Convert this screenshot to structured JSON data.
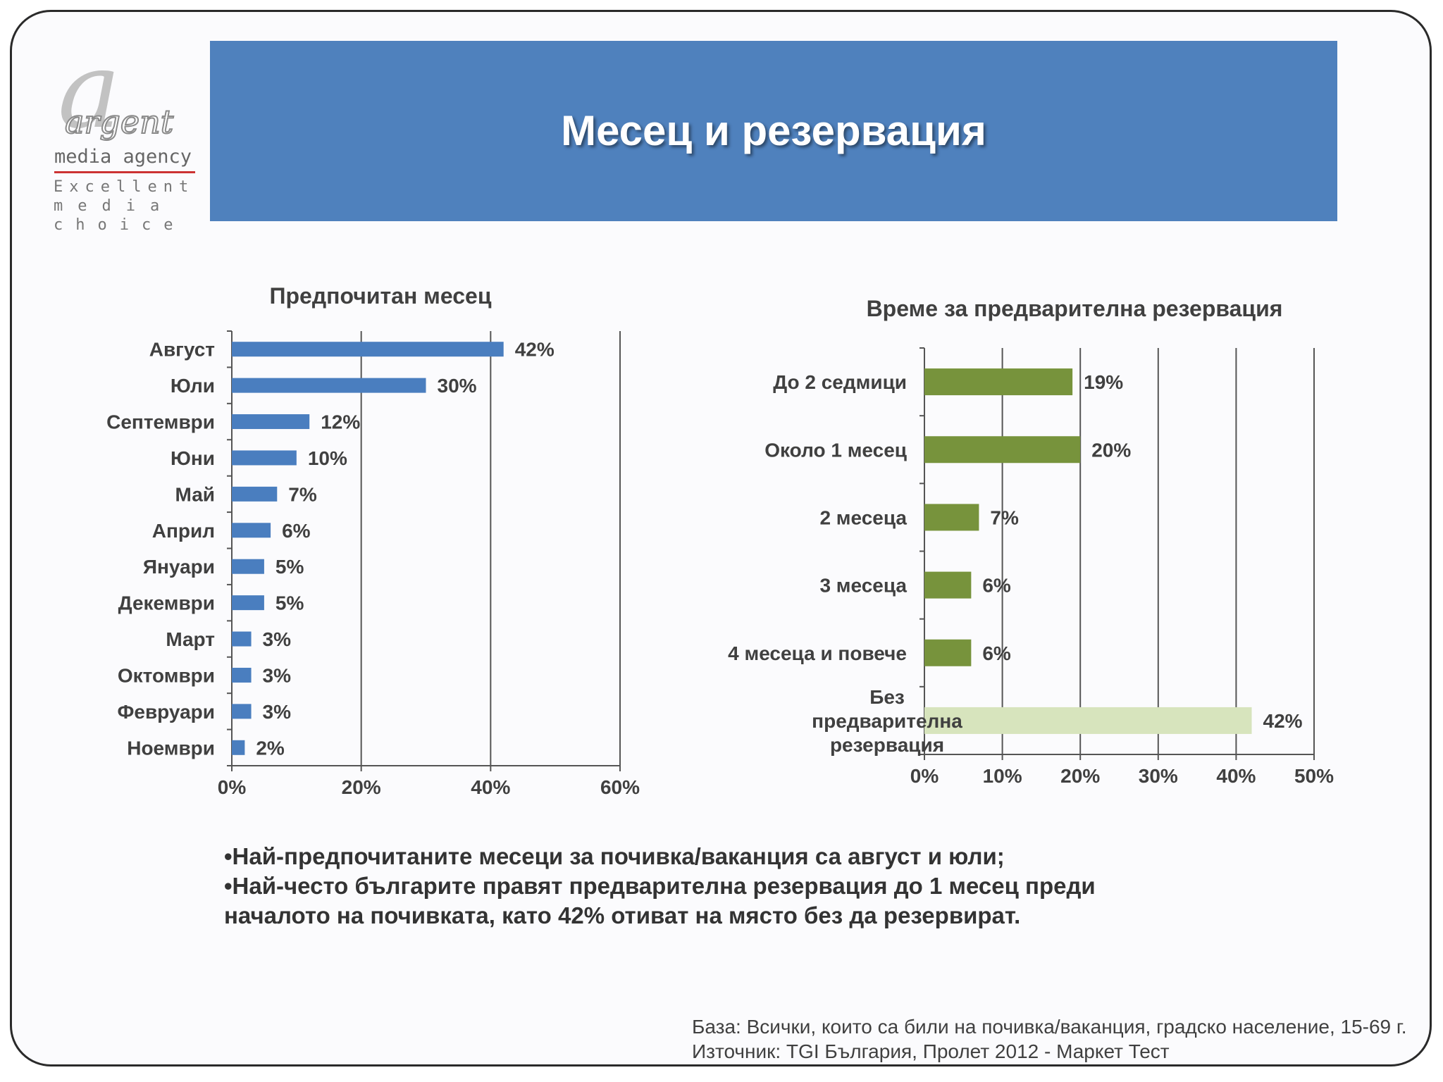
{
  "logo": {
    "mark": "a",
    "brand": "argent",
    "sub": "media agency",
    "tag_line1": "Excellent",
    "tag_line2": "media",
    "tag_line3": "choice"
  },
  "header": {
    "title": "Месец и резервация"
  },
  "chart_data": [
    {
      "type": "bar",
      "orientation": "horizontal",
      "title": "Предпочитан месец",
      "categories": [
        "Август",
        "Юли",
        "Септември",
        "Юни",
        "Май",
        "Април",
        "Януари",
        "Декември",
        "Март",
        "Октомври",
        "Февруари",
        "Ноември"
      ],
      "values": [
        42,
        30,
        12,
        10,
        7,
        6,
        5,
        5,
        3,
        3,
        3,
        2
      ],
      "value_labels": [
        "42%",
        "30%",
        "12%",
        "10%",
        "7%",
        "6%",
        "5%",
        "5%",
        "3%",
        "3%",
        "3%",
        "2%"
      ],
      "xlim": [
        0,
        60
      ],
      "ticks": [
        0,
        20,
        40,
        60
      ],
      "tick_labels": [
        "0%",
        "20%",
        "40%",
        "60%"
      ],
      "grid": true,
      "colors": [
        "#4a7ebf"
      ]
    },
    {
      "type": "bar",
      "orientation": "horizontal",
      "title": "Време за предварителна резервация",
      "categories": [
        "До 2 седмици",
        "Около 1 месец",
        "2 месеца",
        "3 месеца",
        "4 месеца и повече",
        "Без предварителна резервация"
      ],
      "values": [
        19,
        20,
        7,
        6,
        6,
        42
      ],
      "value_labels": [
        "19%",
        "20%",
        "7%",
        "6%",
        "6%",
        "42%"
      ],
      "xlim": [
        0,
        50
      ],
      "ticks": [
        0,
        10,
        20,
        30,
        40,
        50
      ],
      "tick_labels": [
        "0%",
        "10%",
        "20%",
        "30%",
        "40%",
        "50%"
      ],
      "grid": true,
      "colors": [
        "#77933c",
        "#77933c",
        "#77933c",
        "#77933c",
        "#77933c",
        "#d7e4bd"
      ]
    }
  ],
  "notes": [
    "•Най-предпочитаните месеци за почивка/ваканция са август и юли;",
    "•Най-често българите правят предварителна резервация до 1 месец преди",
    "началото на почивката, като 42% отиват на място без да резервират."
  ],
  "footer": {
    "base": "База: Всички, които са били на почивка/ваканция, градско население, 15-69 г.",
    "source": "Източник: TGI България, Пролет 2012 - Маркет Тест"
  }
}
